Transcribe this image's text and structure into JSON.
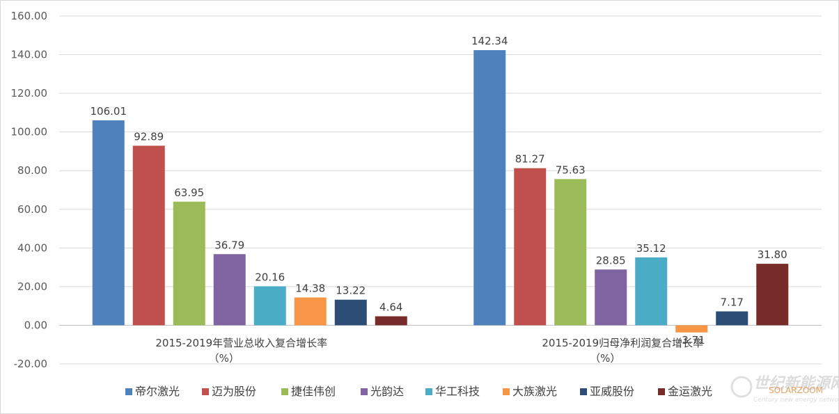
{
  "chart_data": {
    "type": "bar",
    "categories": [
      "2015-2019年营业总收入复合增长率\n（%）",
      "2015-2019归母净利润复合增长率\n（%）"
    ],
    "series": [
      {
        "name": "帝尔激光",
        "color": "#4f81bd",
        "values": [
          106.01,
          142.34
        ],
        "labels": [
          "106.01",
          "142.34"
        ]
      },
      {
        "name": "迈为股份",
        "color": "#c0504d",
        "values": [
          92.89,
          81.27
        ],
        "labels": [
          "92.89",
          "81.27"
        ]
      },
      {
        "name": "捷佳伟创",
        "color": "#9bbb59",
        "values": [
          63.95,
          75.63
        ],
        "labels": [
          "63.95",
          "75.63"
        ]
      },
      {
        "name": "光韵达",
        "color": "#8064a2",
        "values": [
          36.79,
          28.85
        ],
        "labels": [
          "36.79",
          "28.85"
        ]
      },
      {
        "name": "华工科技",
        "color": "#4bacc6",
        "values": [
          20.16,
          35.12
        ],
        "labels": [
          "20.16",
          "35.12"
        ]
      },
      {
        "name": "大族激光",
        "color": "#f79646",
        "values": [
          14.38,
          -3.71
        ],
        "labels": [
          "14.38",
          "-3.71"
        ]
      },
      {
        "name": "亚威股份",
        "color": "#2c4d75",
        "values": [
          13.22,
          7.17
        ],
        "labels": [
          "13.22",
          "7.17"
        ]
      },
      {
        "name": "金运激光",
        "color": "#772c2a",
        "values": [
          4.64,
          31.8
        ],
        "labels": [
          "4.64",
          "31.80"
        ]
      }
    ],
    "ylim": [
      -20,
      160
    ],
    "yticks": [
      "-20.00",
      "0.00",
      "20.00",
      "40.00",
      "60.00",
      "80.00",
      "100.00",
      "120.00",
      "140.00",
      "160.00"
    ],
    "ytick_values": [
      -20,
      0,
      20,
      40,
      60,
      80,
      100,
      120,
      140,
      160
    ],
    "grid": true,
    "legend_position": "bottom"
  },
  "watermark": {
    "text": "世纪新能源网",
    "subtext": "Century new energy network",
    "brand": "SOLARZOOM"
  }
}
